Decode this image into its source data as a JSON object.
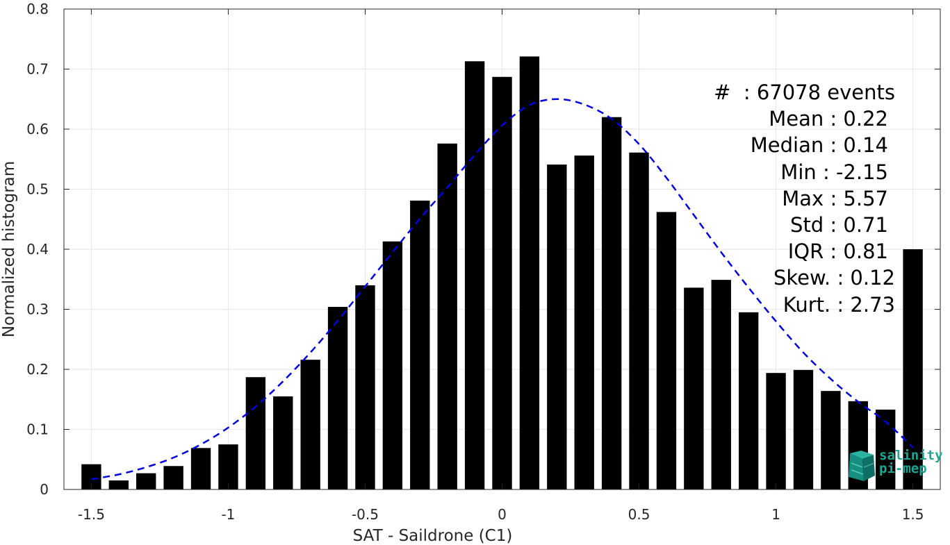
{
  "chart_data": {
    "type": "bar",
    "xlabel": "SAT - Saildrone (C1)",
    "ylabel": "Normalized histogram",
    "xlim": [
      -1.6,
      1.6
    ],
    "ylim": [
      0,
      0.8
    ],
    "xticks": [
      -1.5,
      -1,
      -0.5,
      0,
      0.5,
      1,
      1.5
    ],
    "xtick_labels": [
      "-1.5",
      "-1",
      "-0.5",
      "0",
      "0.5",
      "1",
      "1.5"
    ],
    "yticks": [
      0,
      0.1,
      0.2,
      0.3,
      0.4,
      0.5,
      0.6,
      0.7,
      0.8
    ],
    "ytick_labels": [
      "0",
      "0.1",
      "0.2",
      "0.3",
      "0.4",
      "0.5",
      "0.6",
      "0.7",
      "0.8"
    ],
    "grid": true,
    "bin_width": 0.1,
    "x": [
      -1.5,
      -1.4,
      -1.3,
      -1.2,
      -1.1,
      -1.0,
      -0.9,
      -0.8,
      -0.7,
      -0.6,
      -0.5,
      -0.4,
      -0.3,
      -0.2,
      -0.1,
      0.0,
      0.1,
      0.2,
      0.3,
      0.4,
      0.5,
      0.6,
      0.7,
      0.8,
      0.9,
      1.0,
      1.1,
      1.2,
      1.3,
      1.4,
      1.5
    ],
    "values": [
      0.042,
      0.015,
      0.027,
      0.039,
      0.069,
      0.075,
      0.187,
      0.155,
      0.216,
      0.304,
      0.34,
      0.413,
      0.481,
      0.576,
      0.713,
      0.687,
      0.721,
      0.541,
      0.556,
      0.62,
      0.561,
      0.462,
      0.336,
      0.349,
      0.295,
      0.194,
      0.199,
      0.164,
      0.147,
      0.133,
      0.4
    ],
    "bar_color": "#000000",
    "fit_curve": {
      "style": "dashed",
      "color": "#0000e0",
      "x": [
        -1.5,
        -1.4,
        -1.3,
        -1.2,
        -1.1,
        -1.0,
        -0.9,
        -0.8,
        -0.7,
        -0.6,
        -0.5,
        -0.4,
        -0.3,
        -0.2,
        -0.1,
        0.0,
        0.1,
        0.2,
        0.3,
        0.4,
        0.5,
        0.6,
        0.7,
        0.8,
        0.9,
        1.0,
        1.1,
        1.2,
        1.3,
        1.4,
        1.5
      ],
      "y": [
        0.017,
        0.025,
        0.037,
        0.053,
        0.075,
        0.103,
        0.138,
        0.18,
        0.228,
        0.281,
        0.338,
        0.395,
        0.451,
        0.503,
        0.557,
        0.606,
        0.64,
        0.65,
        0.641,
        0.617,
        0.575,
        0.519,
        0.457,
        0.395,
        0.336,
        0.28,
        0.228,
        0.184,
        0.146,
        0.113,
        0.07
      ]
    },
    "stats": [
      "#  : 67078 events",
      "Mean : 0.22",
      "Median : 0.14",
      "Min : -2.15",
      "Max : 5.57",
      "Std : 0.71",
      "IQR : 0.81",
      "Skew. : 0.12",
      "Kurt. : 2.73"
    ]
  },
  "logo": {
    "line1": "salinity",
    "line2": "pi-mep",
    "color": "#1fa593"
  }
}
